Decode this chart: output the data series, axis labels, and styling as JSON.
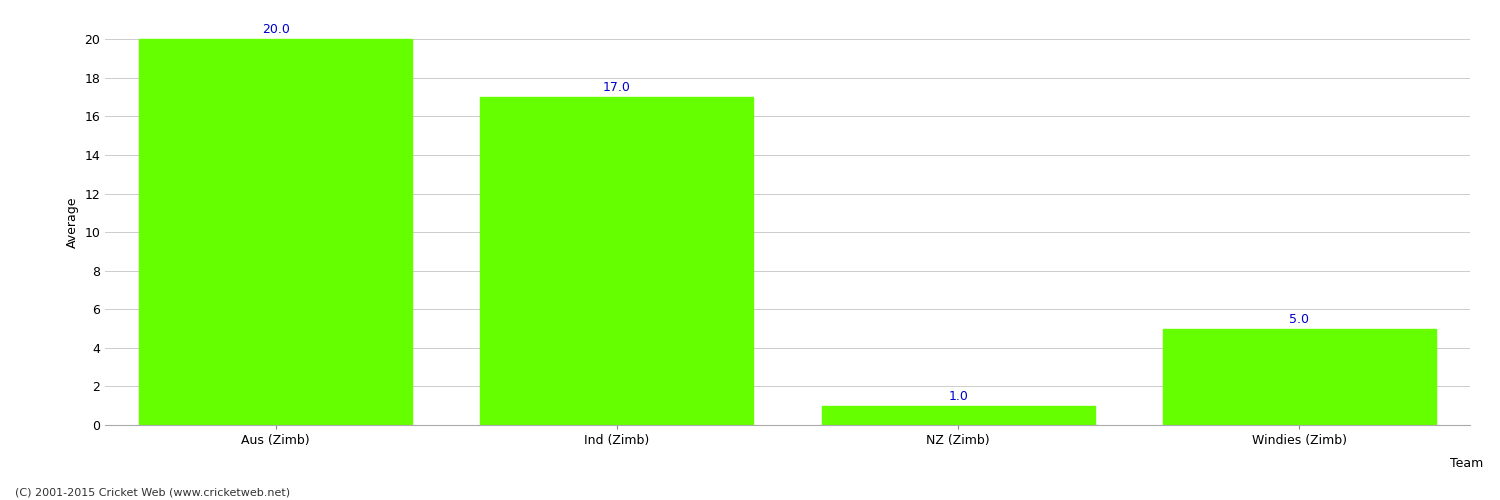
{
  "categories": [
    "Aus (Zimb)",
    "Ind (Zimb)",
    "NZ (Zimb)",
    "Windies (Zimb)"
  ],
  "values": [
    20.0,
    17.0,
    1.0,
    5.0
  ],
  "bar_color": "#66ff00",
  "bar_edge_color": "#66ff00",
  "xlabel": "Team",
  "ylabel": "Average",
  "ylim": [
    0,
    21
  ],
  "yticks": [
    0,
    2,
    4,
    6,
    8,
    10,
    12,
    14,
    16,
    18,
    20
  ],
  "label_color": "#0000cc",
  "label_fontsize": 9,
  "axis_label_fontsize": 9,
  "tick_fontsize": 9,
  "grid_color": "#cccccc",
  "bg_color": "#ffffff",
  "footer_text": "(C) 2001-2015 Cricket Web (www.cricketweb.net)",
  "footer_fontsize": 8,
  "footer_color": "#333333"
}
